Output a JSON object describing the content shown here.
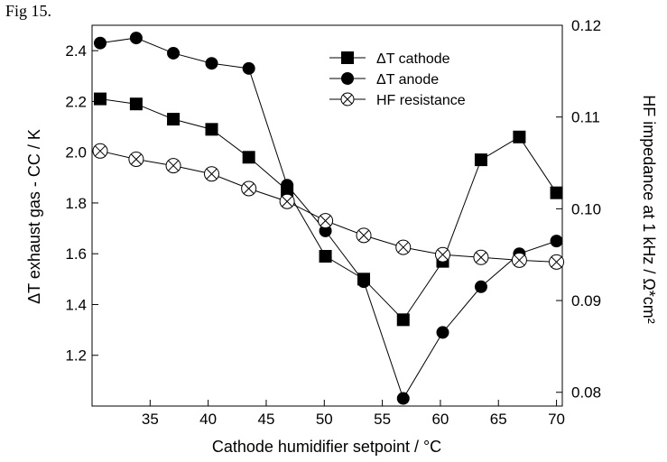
{
  "figure_label": "Fig 15.",
  "chart_data": {
    "type": "line",
    "xlabel": "Cathode humidifier setpoint / °C",
    "ylabel_left": "ΔT exhaust gas - CC / K",
    "ylabel_right": "HF impedance at 1 kHz / Ω*cm²",
    "xlim": [
      30,
      70.5
    ],
    "ylim_left": [
      1.0,
      2.5
    ],
    "ylim_right": [
      0.0785,
      0.12
    ],
    "x_ticks": [
      35,
      40,
      45,
      50,
      55,
      60,
      65,
      70
    ],
    "y_left_ticks": [
      1.2,
      1.4,
      1.6,
      1.8,
      2.0,
      2.2,
      2.4
    ],
    "y_right_ticks": [
      0.08,
      0.09,
      0.1,
      0.11,
      0.12
    ],
    "legend_position": "top-center",
    "series": [
      {
        "name": "ΔT cathode",
        "marker": "square",
        "axis": "left",
        "x": [
          30.7,
          33.8,
          37.0,
          40.3,
          43.5,
          46.8,
          50.1,
          53.4,
          56.8,
          60.2,
          63.5,
          66.8,
          70.0
        ],
        "y": [
          2.21,
          2.19,
          2.13,
          2.09,
          1.98,
          1.85,
          1.59,
          1.5,
          1.34,
          1.57,
          1.97,
          2.06,
          1.84
        ]
      },
      {
        "name": "ΔT anode",
        "marker": "circle",
        "axis": "left",
        "x": [
          30.7,
          33.8,
          37.0,
          40.3,
          43.5,
          46.8,
          50.1,
          53.4,
          56.8,
          60.2,
          63.5,
          66.8,
          70.0
        ],
        "y": [
          2.43,
          2.45,
          2.39,
          2.35,
          2.33,
          1.87,
          1.69,
          1.49,
          1.03,
          1.29,
          1.47,
          1.6,
          1.65
        ]
      },
      {
        "name": "HF resistance",
        "marker": "circle-x",
        "axis": "right",
        "x": [
          30.7,
          33.8,
          37.0,
          40.3,
          43.5,
          46.8,
          50.1,
          53.4,
          56.8,
          60.2,
          63.5,
          66.8,
          70.0
        ],
        "y": [
          0.1063,
          0.1054,
          0.1047,
          0.1038,
          0.1022,
          0.1008,
          0.0987,
          0.0971,
          0.0958,
          0.095,
          0.0947,
          0.0944,
          0.0942
        ]
      }
    ]
  }
}
